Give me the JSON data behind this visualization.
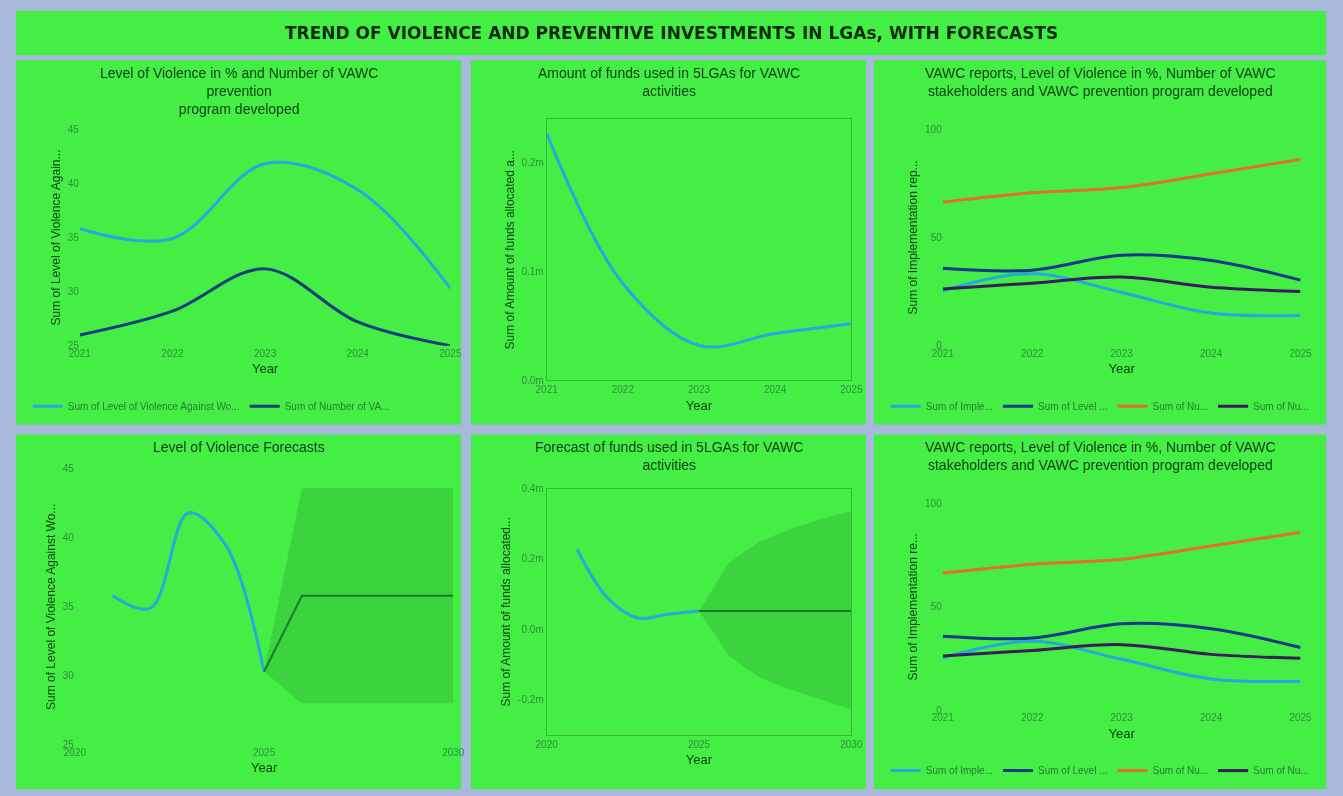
{
  "chart_data": [
    {
      "type": "other",
      "title": "TREND OF VIOLENCE AND PREVENTIVE INVESTMENTS IN LGAs, WITH FORECASTS"
    },
    {
      "type": "line",
      "title": "Level of Violence in % and Number of VAWC\nprevention\nprogram developed",
      "xlabel": "Year",
      "ylabel": "Sum of Level of Violence Again...",
      "x": [
        2021,
        2022,
        2023,
        2024,
        2025
      ],
      "xlim": [
        2021,
        2025
      ],
      "xticks": [
        2021,
        2022,
        2023,
        2024,
        2025
      ],
      "ylim": [
        25,
        45
      ],
      "yticks": [
        25,
        30,
        35,
        40,
        45
      ],
      "legend": "bottom",
      "series": [
        {
          "name": "Sum of Level of Violence Against Wo...",
          "color": "#2aa7dd",
          "values": [
            35.8,
            34.9,
            41.8,
            39.4,
            30.3
          ]
        },
        {
          "name": "Sum of Number of VA...",
          "color": "#0f3c7a",
          "values": [
            26.0,
            28.2,
            32.1,
            27.2,
            25.0
          ]
        }
      ]
    },
    {
      "type": "line",
      "title": "Amount of funds used in 5LGAs for VAWC\nactivities",
      "xlabel": "Year",
      "ylabel": "Sum of Amount of funds allocated a...",
      "x": [
        2021,
        2022,
        2023,
        2024,
        2025
      ],
      "xlim": [
        2021,
        2025
      ],
      "xticks": [
        2021,
        2022,
        2023,
        2024,
        2025
      ],
      "ylim": [
        0,
        0.24
      ],
      "yticks": [
        {
          "value": 0.0,
          "label": "0.0m"
        },
        {
          "value": 0.1,
          "label": "0.1m"
        },
        {
          "value": 0.2,
          "label": "0.2m"
        }
      ],
      "series": [
        {
          "color": "#2aa7dd",
          "values": [
            0.227,
            0.089,
            0.032,
            0.043,
            0.052
          ]
        }
      ]
    },
    {
      "type": "line",
      "title": "VAWC reports, Level of Violence in %, Number of VAWC\nstakeholders and VAWC prevention program developed",
      "xlabel": "Year",
      "ylabel": "Sum of Implementation rep...",
      "x": [
        2021,
        2022,
        2023,
        2024,
        2025
      ],
      "xlim": [
        2021,
        2025
      ],
      "xticks": [
        2021,
        2022,
        2023,
        2024,
        2025
      ],
      "ylim": [
        0,
        100
      ],
      "yticks": [
        0,
        50,
        100
      ],
      "legend": "bottom",
      "series": [
        {
          "name": "Sum of Imple...",
          "color": "#23a8e0",
          "values": [
            25.4,
            33.3,
            24.6,
            15.1,
            14.0
          ]
        },
        {
          "name": "Sum of Level ...",
          "color": "#12388a",
          "values": [
            35.8,
            34.9,
            41.8,
            39.4,
            30.3
          ]
        },
        {
          "name": "Sum of Nu...",
          "color": "#e0702c",
          "values": [
            66.3,
            70.6,
            73.0,
            79.4,
            86.0
          ]
        },
        {
          "name": "Sum of Nu...",
          "color": "#3a1e5a",
          "values": [
            26.2,
            28.9,
            31.7,
            27.0,
            25.1
          ]
        }
      ]
    },
    {
      "type": "line",
      "title": "Level of Violence Forecasts",
      "xlabel": "Year",
      "ylabel": "Sum of Level of Violence Against Wo...",
      "xlim": [
        2020,
        2030
      ],
      "xticks": [
        2020,
        2025,
        2030
      ],
      "ylim": [
        25,
        45
      ],
      "yticks": [
        25,
        30,
        35,
        40,
        45
      ],
      "series": [
        {
          "color": "#2aa7dd",
          "x": [
            2021,
            2022,
            2023,
            2024,
            2025
          ],
          "values": [
            35.8,
            34.9,
            41.8,
            39.4,
            30.3
          ]
        },
        {
          "color": "#1a7a2a",
          "x": [
            2025,
            2026,
            2027,
            2028,
            2029,
            2030
          ],
          "values": [
            30.3,
            35.8,
            35.8,
            35.8,
            35.8,
            35.8
          ],
          "lower": [
            30.3,
            28.0,
            28.0,
            28.0,
            28.0,
            28.0
          ],
          "upper": [
            30.3,
            43.6,
            43.6,
            43.6,
            43.6,
            43.6
          ]
        }
      ]
    },
    {
      "type": "line",
      "title": "Forecast of funds used in 5LGAs for VAWC\nactivities",
      "xlabel": "Year",
      "ylabel": "Sum of Amount of funds allocated...",
      "xlim": [
        2020,
        2030
      ],
      "xticks": [
        2020,
        2025,
        2030
      ],
      "ylim": [
        -0.3,
        0.4
      ],
      "yticks": [
        {
          "value": -0.2,
          "label": "-0.2m"
        },
        {
          "value": 0.0,
          "label": "0.0m"
        },
        {
          "value": 0.2,
          "label": "0.2m"
        },
        {
          "value": 0.4,
          "label": "0.4m"
        }
      ],
      "series": [
        {
          "color": "#2aa7dd",
          "x": [
            2021,
            2022,
            2023,
            2024,
            2025
          ],
          "values": [
            0.227,
            0.089,
            0.032,
            0.043,
            0.052
          ]
        },
        {
          "color": "#1a7a2a",
          "x": [
            2025,
            2026,
            2027,
            2028,
            2029,
            2030
          ],
          "values": [
            0.052,
            0.052,
            0.052,
            0.052,
            0.052,
            0.052
          ],
          "lower": [
            0.052,
            -0.077,
            -0.138,
            -0.171,
            -0.199,
            -0.228
          ],
          "upper": [
            0.052,
            0.19,
            0.25,
            0.285,
            0.313,
            0.336
          ]
        }
      ]
    },
    {
      "type": "line",
      "title": "VAWC reports, Level of Violence in %, Number of VAWC\nstakeholders and VAWC prevention program developed",
      "xlabel": "Year",
      "ylabel": "Sum of Implementation re...",
      "x": [
        2021,
        2022,
        2023,
        2024,
        2025
      ],
      "xlim": [
        2021,
        2025
      ],
      "xticks": [
        2021,
        2022,
        2023,
        2024,
        2025
      ],
      "ylim": [
        0,
        100
      ],
      "yticks": [
        0,
        50,
        100
      ],
      "legend": "bottom",
      "series": [
        {
          "name": "Sum of Imple...",
          "color": "#23a8e0",
          "values": [
            25.4,
            33.3,
            24.6,
            15.1,
            14.0
          ]
        },
        {
          "name": "Sum of Level ...",
          "color": "#12388a",
          "values": [
            35.8,
            34.9,
            41.8,
            39.4,
            30.3
          ]
        },
        {
          "name": "Sum of Nu...",
          "color": "#e0702c",
          "values": [
            66.3,
            70.6,
            73.0,
            79.4,
            86.0
          ]
        },
        {
          "name": "Sum of Nu...",
          "color": "#3a1e5a",
          "values": [
            26.2,
            28.9,
            31.7,
            27.0,
            25.1
          ]
        }
      ]
    }
  ]
}
